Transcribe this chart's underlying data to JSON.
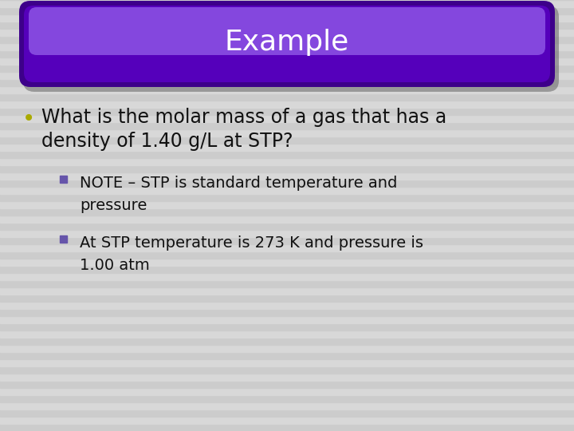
{
  "title": "Example",
  "title_color": "#ffffff",
  "title_fontsize": 26,
  "bg_color": "#d8d8d8",
  "stripe_color1": "#cccccc",
  "stripe_color2": "#d8d8d8",
  "pill_color_dark": "#3d008a",
  "pill_color_mid": "#5500bb",
  "pill_color_light": "#7733dd",
  "pill_highlight": "#9966ee",
  "bullet_main_color": "#aaaa00",
  "bullet_sub_color": "#6655aa",
  "main_bullet_text_line1": "What is the molar mass of a gas that has a",
  "main_bullet_text_line2": "density of 1.40 g/L at STP?",
  "sub_bullet1_line1": "NOTE – STP is standard temperature and",
  "sub_bullet1_line2": "pressure",
  "sub_bullet2_line1": "At STP temperature is 273 K and pressure is",
  "sub_bullet2_line2": "1.00 atm",
  "main_text_fontsize": 17,
  "sub_text_fontsize": 14,
  "text_color": "#111111"
}
